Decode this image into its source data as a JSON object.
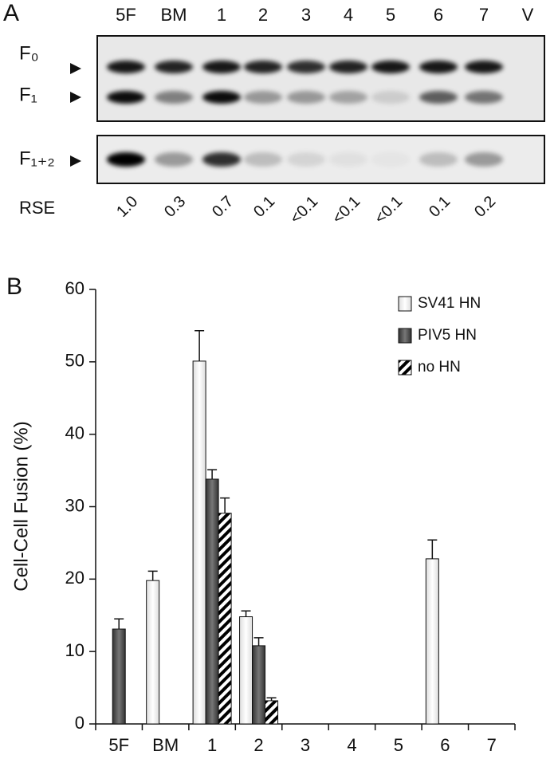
{
  "panel_a": {
    "label": "A",
    "lanes": [
      "5F",
      "BM",
      "1",
      "2",
      "3",
      "4",
      "5",
      "6",
      "7",
      "V"
    ],
    "bands": [
      "F₀",
      "F₁",
      "F₁₊₂"
    ],
    "rse_label": "RSE",
    "rse_values": [
      "1.0",
      "0.3",
      "0.7",
      "0.1",
      "<0.1",
      "<0.1",
      "<0.1",
      "0.1",
      "0.2"
    ]
  },
  "chart_data": {
    "type": "bar",
    "panel_label": "B",
    "y_label": "Cell-Cell Fusion (%)",
    "categories": [
      "5F",
      "BM",
      "1",
      "2",
      "3",
      "4",
      "5",
      "6",
      "7"
    ],
    "series": [
      {
        "name": "SV41 HN",
        "color": "#ffffff",
        "values": [
          null,
          19.8,
          50.1,
          14.8,
          null,
          null,
          null,
          22.8,
          null
        ],
        "errors": [
          null,
          1.3,
          4.2,
          0.8,
          null,
          null,
          null,
          2.6,
          null
        ]
      },
      {
        "name": "PIV5 HN",
        "color": "#555555",
        "values": [
          13.1,
          null,
          33.8,
          10.8,
          null,
          null,
          null,
          null,
          null
        ],
        "errors": [
          1.4,
          null,
          1.3,
          1.1,
          null,
          null,
          null,
          null,
          null
        ]
      },
      {
        "name": "no HN",
        "color": "#000000",
        "hatch": true,
        "values": [
          null,
          null,
          29.1,
          3.2,
          null,
          null,
          null,
          null,
          null
        ],
        "errors": [
          null,
          null,
          2.1,
          0.4,
          null,
          null,
          null,
          null,
          null
        ]
      }
    ],
    "ylim": [
      0,
      60
    ],
    "yticks": [
      0,
      10,
      20,
      30,
      40,
      50,
      60
    ],
    "legend": "upper right"
  }
}
